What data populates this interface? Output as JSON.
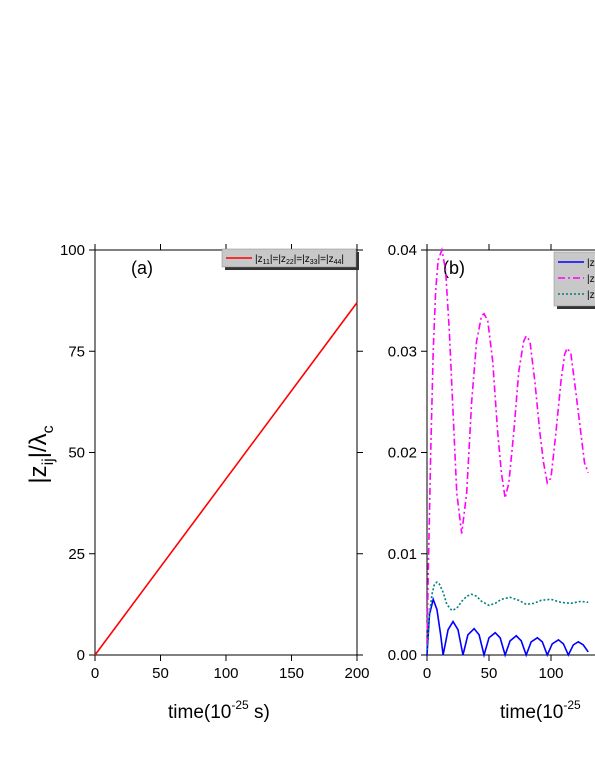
{
  "chart_data": [
    {
      "type": "line",
      "annotation": "(a)",
      "xlabel": [
        "time(10",
        "-25",
        " s)"
      ],
      "ylabel": [
        "|z",
        "ij",
        "|/λ",
        "c"
      ],
      "xlim": [
        0,
        200
      ],
      "ylim": [
        0,
        100
      ],
      "xticks": [
        0,
        50,
        100,
        150,
        200
      ],
      "yticks": [
        0,
        25,
        50,
        75,
        100
      ],
      "legend": "upper right",
      "series": [
        {
          "name": "|z11|=|z22|=|z33|=|z44|",
          "color": "#ff0000",
          "dash": "solid",
          "x": [
            0,
            200
          ],
          "values": [
            0,
            87
          ]
        }
      ]
    },
    {
      "type": "line",
      "annotation": "(b)",
      "xlabel": [
        "time(10",
        "-25"
      ],
      "xlim": [
        0,
        200
      ],
      "ylim": [
        0,
        0.04
      ],
      "xticks": [
        0,
        50,
        100
      ],
      "yticks": [
        {
          "value": 0,
          "label": "0.00"
        },
        0.01,
        0.02,
        0.03,
        0.04
      ],
      "legend": "upper right",
      "series": [
        {
          "name": "|z",
          "color": "#0000ff",
          "dash": "solid",
          "x": [
            0,
            2,
            5,
            8,
            11,
            13,
            17,
            21,
            25,
            29,
            33,
            38,
            42,
            46,
            50,
            55,
            59,
            63,
            67,
            72,
            76,
            80,
            84,
            89,
            93,
            97,
            101,
            106,
            110,
            114,
            118,
            122,
            126,
            130
          ],
          "values": [
            0,
            0.004,
            0.0055,
            0.0045,
            0.002,
            0,
            0.0025,
            0.0033,
            0.0025,
            0,
            0.002,
            0.0026,
            0.002,
            0,
            0.0017,
            0.0022,
            0.0017,
            0,
            0.0014,
            0.0019,
            0.0014,
            0,
            0.0013,
            0.0017,
            0.0013,
            0,
            0.0011,
            0.0015,
            0.0011,
            0,
            0.001,
            0.0013,
            0.001,
            0.0003
          ]
        },
        {
          "name": "|z",
          "color": "#ff00ff",
          "dash": "dashdot",
          "x": [
            0,
            1,
            3,
            5,
            7,
            9,
            12,
            15,
            18,
            21,
            24,
            28,
            32,
            36,
            40,
            44,
            46,
            49,
            53,
            57,
            60,
            63,
            66,
            70,
            74,
            78,
            80,
            83,
            87,
            91,
            94,
            97,
            100,
            104,
            108,
            111,
            113,
            116,
            120,
            124,
            127,
            130
          ],
          "values": [
            0.001,
            0.008,
            0.02,
            0.03,
            0.036,
            0.039,
            0.04,
            0.038,
            0.032,
            0.024,
            0.016,
            0.012,
            0.016,
            0.025,
            0.031,
            0.0335,
            0.0337,
            0.033,
            0.029,
            0.022,
            0.018,
            0.0155,
            0.017,
            0.022,
            0.028,
            0.031,
            0.0315,
            0.031,
            0.027,
            0.022,
            0.019,
            0.017,
            0.0175,
            0.022,
            0.027,
            0.0297,
            0.0303,
            0.0298,
            0.026,
            0.022,
            0.019,
            0.018
          ]
        },
        {
          "name": "|z",
          "color": "#008080",
          "dash": "dot",
          "x": [
            0,
            2,
            4,
            6,
            8,
            10,
            13,
            16,
            20,
            24,
            28,
            32,
            36,
            40,
            44,
            50,
            55,
            60,
            67,
            74,
            80,
            86,
            92,
            100,
            108,
            116,
            124,
            130
          ],
          "values": [
            0.0005,
            0.004,
            0.006,
            0.007,
            0.0072,
            0.007,
            0.0062,
            0.005,
            0.0044,
            0.0046,
            0.0053,
            0.0058,
            0.006,
            0.0058,
            0.0053,
            0.0049,
            0.0051,
            0.0055,
            0.0057,
            0.0054,
            0.005,
            0.0051,
            0.0054,
            0.0055,
            0.0052,
            0.0051,
            0.0053,
            0.0052
          ]
        }
      ]
    }
  ]
}
